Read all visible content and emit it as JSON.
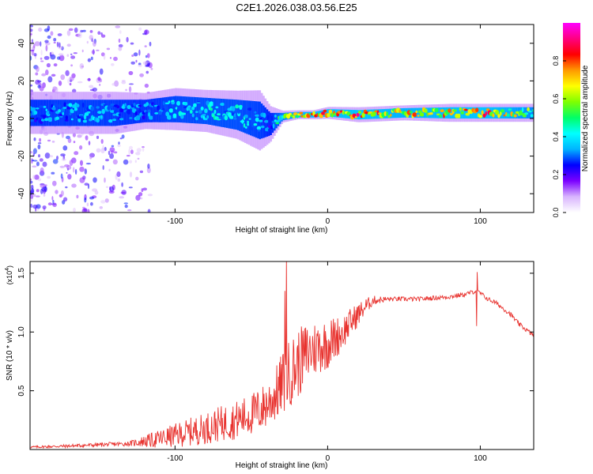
{
  "title": "C2E1.2026.038.03.56.E25",
  "colors": {
    "snr_line": "#e8322e",
    "axis": "#000000",
    "plot_bg": "#ffffff",
    "spec_base": "#e6d6fb"
  },
  "chart_data": [
    {
      "type": "heatmap",
      "name": "spectrogram",
      "xlabel": "Height of straight line (km)",
      "ylabel": "Frequency (Hz)",
      "xlim": [
        -195,
        135
      ],
      "ylim": [
        -50,
        50
      ],
      "xticks": [
        -100,
        0,
        100
      ],
      "xtick_labels": [
        "-100",
        "0",
        "100"
      ],
      "yticks": [
        -40,
        -20,
        0,
        20,
        40
      ],
      "ytick_labels": [
        "-40",
        "-20",
        "0",
        "20",
        "40"
      ],
      "colorbar": {
        "label": "Normalized spectral amplitude",
        "range": [
          0,
          1
        ],
        "ticks": [
          0,
          0.2,
          0.4,
          0.6,
          0.8
        ],
        "tick_labels": [
          "0.0",
          "0.2",
          "0.4",
          "0.6",
          "0.8"
        ],
        "colormap": [
          "#ffffff",
          "#d8b4fe",
          "#7b00ff",
          "#0000ff",
          "#00b4ff",
          "#00ffff",
          "#00ff66",
          "#7fff00",
          "#ffff00",
          "#ff9900",
          "#ff0000",
          "#ff0080",
          "#ff00ff"
        ]
      },
      "ridge": {
        "x": [
          -195,
          -180,
          -160,
          -140,
          -120,
          -100,
          -80,
          -60,
          -45,
          -38,
          -30,
          -20,
          -10,
          0,
          20,
          50,
          80,
          100,
          135
        ],
        "y": [
          3,
          3,
          3,
          3,
          4,
          5,
          4,
          2,
          -1,
          -3,
          1,
          2,
          2,
          3,
          2,
          3,
          3,
          3,
          3
        ],
        "halfwidth_hz": [
          7,
          7,
          7,
          7,
          6,
          7,
          7,
          8,
          10,
          6,
          2,
          1.5,
          1.5,
          2,
          2.5,
          2.5,
          3,
          3,
          3
        ],
        "peak_amplitude": [
          0.35,
          0.38,
          0.4,
          0.38,
          0.35,
          0.42,
          0.45,
          0.45,
          0.4,
          0.3,
          0.6,
          0.75,
          0.8,
          0.85,
          0.9,
          0.75,
          0.85,
          0.9,
          0.6
        ]
      }
    },
    {
      "type": "line",
      "name": "snr",
      "xlabel": "Height of straight line (km)",
      "ylabel": "SNR (10 * v/v)",
      "scale_label": "(x10",
      "scale_exponent": "4",
      "scale_close": ")",
      "xlim": [
        -195,
        135
      ],
      "ylim": [
        0,
        1.6
      ],
      "xticks": [
        -100,
        0,
        100
      ],
      "xtick_labels": [
        "-100",
        "0",
        "100"
      ],
      "yticks": [
        0.5,
        1.0,
        1.5
      ],
      "ytick_labels": [
        "0.5",
        "1.0",
        "1.5"
      ],
      "envelope": {
        "x": [
          -195,
          -170,
          -150,
          -130,
          -120,
          -110,
          -100,
          -90,
          -80,
          -70,
          -60,
          -50,
          -45,
          -40,
          -35,
          -30,
          -25,
          -20,
          -15,
          -10,
          -5,
          0,
          5,
          10,
          15,
          20,
          25,
          30,
          40,
          50,
          60,
          70,
          80,
          90,
          95,
          97,
          100,
          105,
          110,
          115,
          120,
          125,
          130,
          135
        ],
        "y": [
          0.02,
          0.03,
          0.04,
          0.05,
          0.07,
          0.09,
          0.12,
          0.15,
          0.18,
          0.22,
          0.25,
          0.3,
          0.33,
          0.38,
          0.45,
          0.55,
          0.65,
          0.72,
          0.8,
          0.85,
          0.88,
          0.9,
          0.95,
          1.0,
          1.08,
          1.15,
          1.22,
          1.27,
          1.28,
          1.28,
          1.28,
          1.29,
          1.3,
          1.32,
          1.34,
          1.35,
          1.33,
          1.28,
          1.25,
          1.2,
          1.15,
          1.07,
          1.02,
          0.97
        ]
      },
      "noise_amplitude": {
        "x": [
          -195,
          -130,
          -110,
          -90,
          -70,
          -50,
          -35,
          -30,
          -20,
          -10,
          0,
          10,
          20,
          30,
          40,
          135
        ],
        "y": [
          0.01,
          0.02,
          0.08,
          0.12,
          0.15,
          0.18,
          0.22,
          0.28,
          0.3,
          0.25,
          0.22,
          0.15,
          0.1,
          0.04,
          0.02,
          0.02
        ]
      },
      "spikes": [
        {
          "x": -27,
          "y": 1.62
        },
        {
          "x": -28,
          "y": 1.35
        },
        {
          "x": 98,
          "y": 1.51
        },
        {
          "x": 97.5,
          "y": 1.05
        }
      ]
    }
  ]
}
